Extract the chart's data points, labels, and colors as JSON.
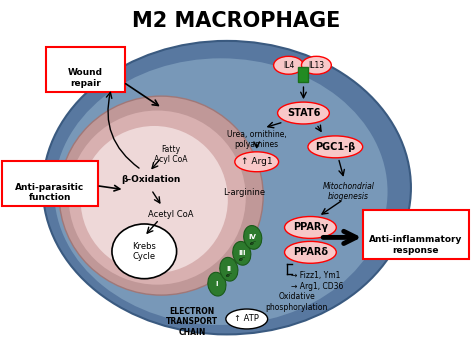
{
  "title": "M2 MACROPHAGE",
  "title_fontsize": 15,
  "bg_color": "#ffffff",
  "labels": {
    "wound_repair": "Wound\nrepair",
    "anti_parasitic": "Anti-parasitic\nfunction",
    "anti_inflammatory": "Anti-inflammatory\nresponse",
    "fatty_acyl": "Fatty\nAcyl CoA",
    "beta_ox": "β-Oxidation",
    "acetyl_coa": "Acetyl CoA",
    "krebs": "Krebs\nCycle",
    "electron": "ELECTRON\nTRANSPORT\nCHAIN",
    "atp": "↑ ATP",
    "oxidative": "Oxidative\nphosphorylation",
    "urea": "Urea, ornithine,\npolyamines",
    "arg1": "↑ Arg1",
    "l_arg": "L-arginine",
    "stat6": "STAT6",
    "pgc1b": "PGC1-β",
    "mito": "Mitochondrial\nbiogenesis",
    "ppary": "PPARγ",
    "ppard": "PPARδ",
    "fizz": "→ Fizz1, Ym1",
    "arg1cd36": "→ Arg1, CD36",
    "il4": "IL4",
    "il13": "IL13"
  },
  "complexes": [
    [
      218,
      285,
      "I"
    ],
    [
      230,
      270,
      "II"
    ],
    [
      243,
      254,
      "III"
    ],
    [
      254,
      238,
      "IV"
    ]
  ]
}
